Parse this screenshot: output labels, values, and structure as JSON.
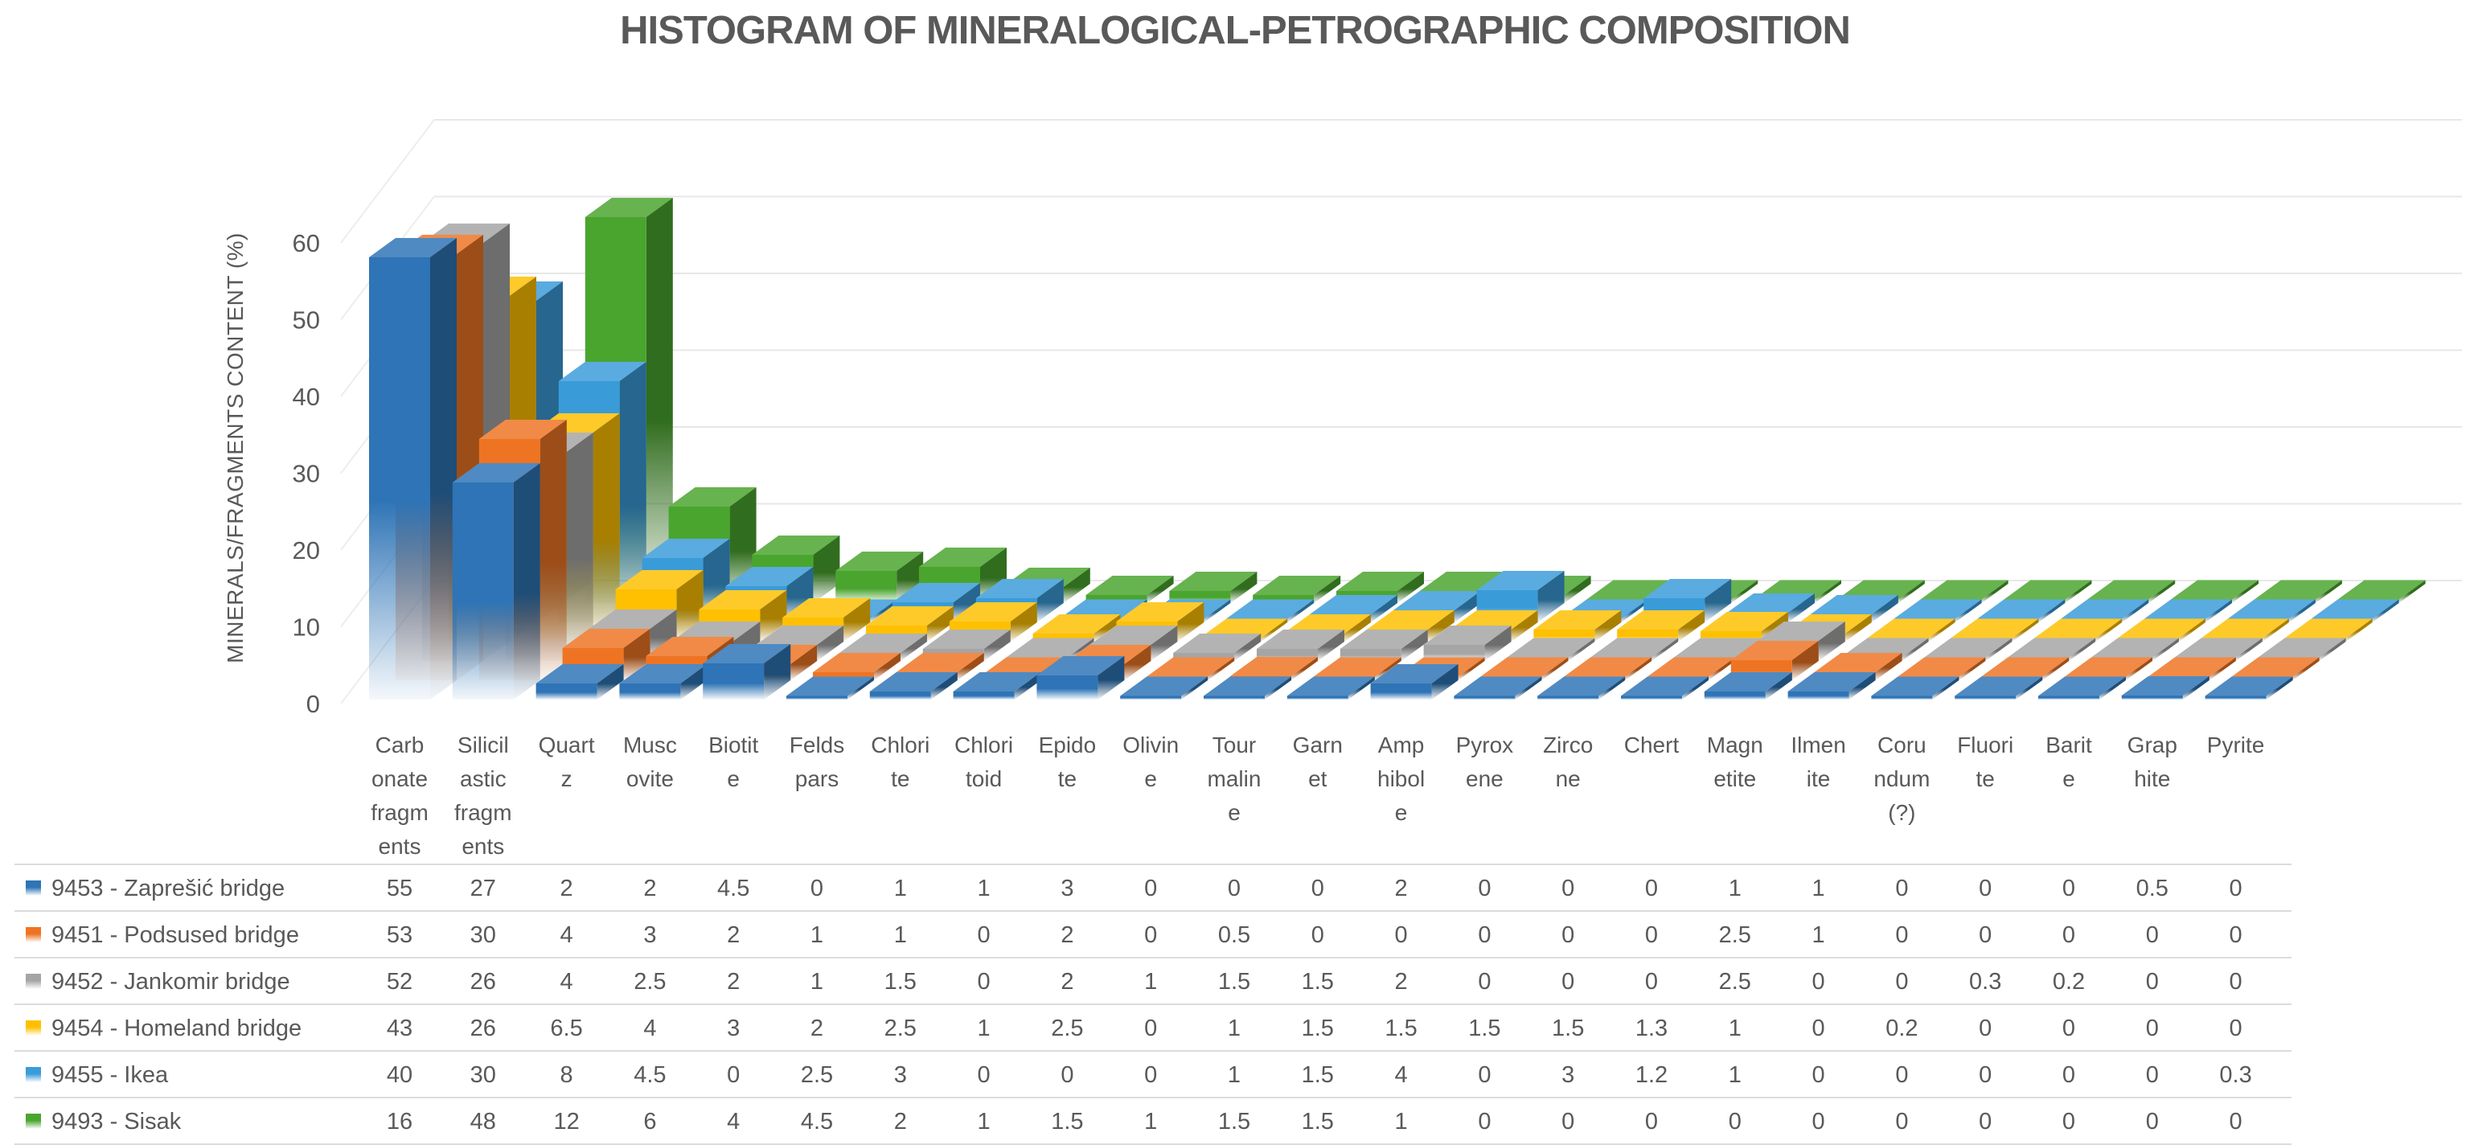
{
  "page": {
    "background": "#ffffff",
    "text_color": "#595959",
    "gridline_color": "#E7E7E7",
    "table_line_color": "#DCDCDC"
  },
  "chart_data": {
    "type": "bar3d",
    "title": "HISTOGRAM OF MINERALOGICAL-PETROGRAPHIC COMPOSITION",
    "ylabel": "MINERALS/FRAGMENTS CONTENT (%)",
    "y_ticks": [
      0,
      10,
      20,
      30,
      40,
      50,
      60
    ],
    "ylim": [
      0,
      60
    ],
    "grid": true,
    "legend_position": "data-table-left",
    "categories": [
      "Carbonate fragments",
      "Silicilastic fragments",
      "Quartz",
      "Muscovite",
      "Biotite",
      "Feldspars",
      "Chlorite",
      "Chloritoid",
      "Epidote",
      "Olivine",
      "Tourmaline",
      "Garnet",
      "Amphibole",
      "Pyroxene",
      "Zircone",
      "Chert",
      "Magnetite",
      "Ilmenite",
      "Corundum (?)",
      "Fluorite",
      "Barite",
      "Graphite",
      "Pyrite"
    ],
    "categories_wrapped": [
      [
        "Carb",
        "onate",
        "fragm",
        "ents"
      ],
      [
        "Silicil",
        "astic",
        "fragm",
        "ents"
      ],
      [
        "Quart",
        "z"
      ],
      [
        "Musc",
        "ovite"
      ],
      [
        "Biotit",
        "e"
      ],
      [
        "Felds",
        "pars"
      ],
      [
        "Chlori",
        "te"
      ],
      [
        "Chlori",
        "toid"
      ],
      [
        "Epido",
        "te"
      ],
      [
        "Olivin",
        "e"
      ],
      [
        "Tour",
        "malin",
        "e"
      ],
      [
        "Garn",
        "et"
      ],
      [
        "Amp",
        "hibol",
        "e"
      ],
      [
        "Pyrox",
        "ene"
      ],
      [
        "Zirco",
        "ne"
      ],
      [
        "Chert"
      ],
      [
        "Magn",
        "etite"
      ],
      [
        "Ilmen",
        "ite"
      ],
      [
        "Coru",
        "ndum",
        "(?)"
      ],
      [
        "Fluori",
        "te"
      ],
      [
        "Barit",
        "e"
      ],
      [
        "Grap",
        "hite"
      ],
      [
        "Pyrite"
      ]
    ],
    "series": [
      {
        "name": "9453 - Zaprešić bridge",
        "color": "#2E74B6",
        "values": [
          55,
          27,
          2,
          2,
          4.5,
          0,
          1,
          1,
          3,
          0,
          0,
          0,
          2,
          0,
          0,
          0,
          1,
          1,
          0,
          0,
          0,
          0.5,
          0
        ]
      },
      {
        "name": "9451 - Podsused bridge",
        "color": "#EE7423",
        "values": [
          53,
          30,
          4,
          3,
          2,
          1,
          1,
          0,
          2,
          0,
          0.5,
          0,
          0,
          0,
          0,
          0,
          2.5,
          1,
          0,
          0,
          0,
          0,
          0
        ]
      },
      {
        "name": "9452 - Jankomir bridge",
        "color": "#A5A5A5",
        "values": [
          52,
          26,
          4,
          2.5,
          2,
          1,
          1.5,
          0,
          2,
          1,
          1.5,
          1.5,
          2,
          0,
          0,
          0,
          2.5,
          0,
          0,
          0.3,
          0.2,
          0,
          0
        ]
      },
      {
        "name": "9454 - Homeland bridge",
        "color": "#FEC000",
        "values": [
          43,
          26,
          6.5,
          4,
          3,
          2,
          2.5,
          1,
          2.5,
          0,
          1,
          1.5,
          1.5,
          1.5,
          1.5,
          1.3,
          1,
          0,
          0.2,
          0,
          0,
          0,
          0
        ]
      },
      {
        "name": "9455 - Ikea",
        "color": "#3A9BD9",
        "values": [
          40,
          30,
          8,
          4.5,
          0,
          2.5,
          3,
          0,
          0,
          0,
          1,
          1.5,
          4,
          0,
          3,
          1.2,
          1,
          0,
          0,
          0,
          0,
          0,
          0.3
        ]
      },
      {
        "name": "9493 - Sisak",
        "color": "#4AA52E",
        "values": [
          16,
          48,
          12,
          6,
          4,
          4.5,
          2,
          1,
          1.5,
          1,
          1.5,
          1.5,
          1,
          0,
          0,
          0,
          0,
          0,
          0,
          0,
          0,
          0,
          0
        ]
      }
    ]
  }
}
